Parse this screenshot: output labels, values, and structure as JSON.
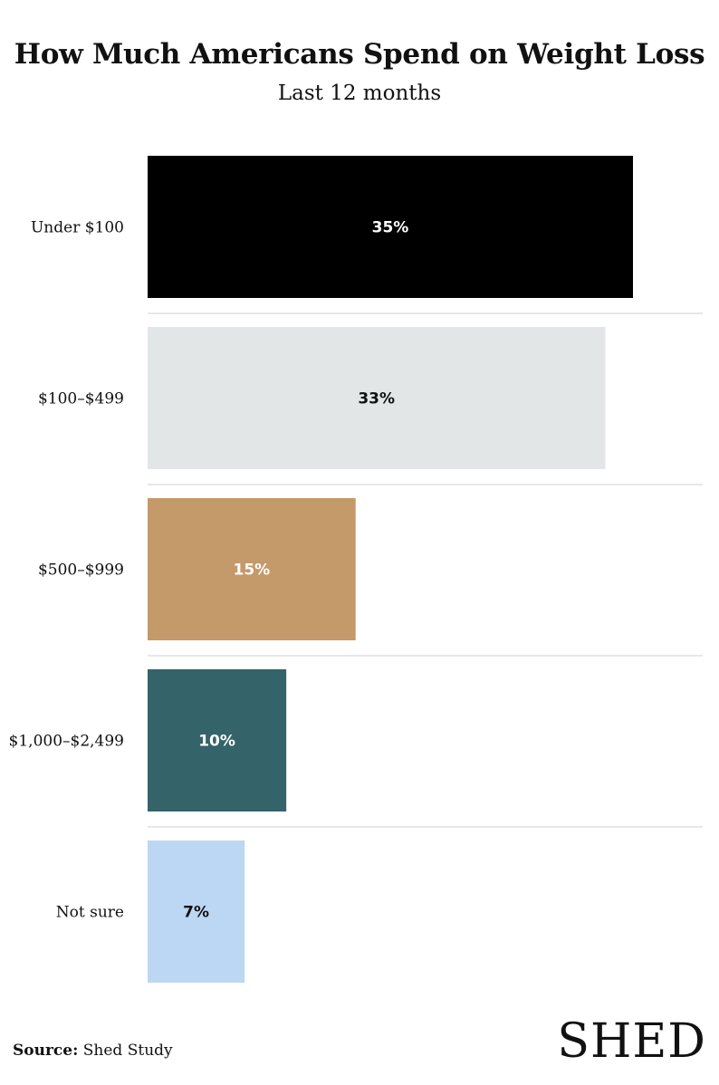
{
  "header": {
    "title": "How Much Americans Spend on Weight Loss",
    "subtitle": "Last 12 months"
  },
  "chart_data": {
    "type": "bar",
    "orientation": "horizontal",
    "title": "How Much Americans Spend on Weight Loss",
    "subtitle": "Last 12 months",
    "categories": [
      "Under $100",
      "$100–$499",
      "$500–$999",
      "$1,000–$2,499",
      "Not sure"
    ],
    "values": [
      35,
      33,
      15,
      10,
      7
    ],
    "value_labels": [
      "35%",
      "33%",
      "15%",
      "10%",
      "7%"
    ],
    "colors": [
      "#000000",
      "#e3e6e6",
      "#c49a6a",
      "#35636a",
      "#bcd7f4"
    ],
    "label_colors": [
      "#ffffff",
      "#111111",
      "#ffffff",
      "#ffffff",
      "#111111"
    ],
    "xlim": [
      0,
      40
    ],
    "grid": false,
    "legend": "none"
  },
  "footer": {
    "source_label": "Source:",
    "source_text": "Shed Study",
    "logo_text": "SHED"
  }
}
